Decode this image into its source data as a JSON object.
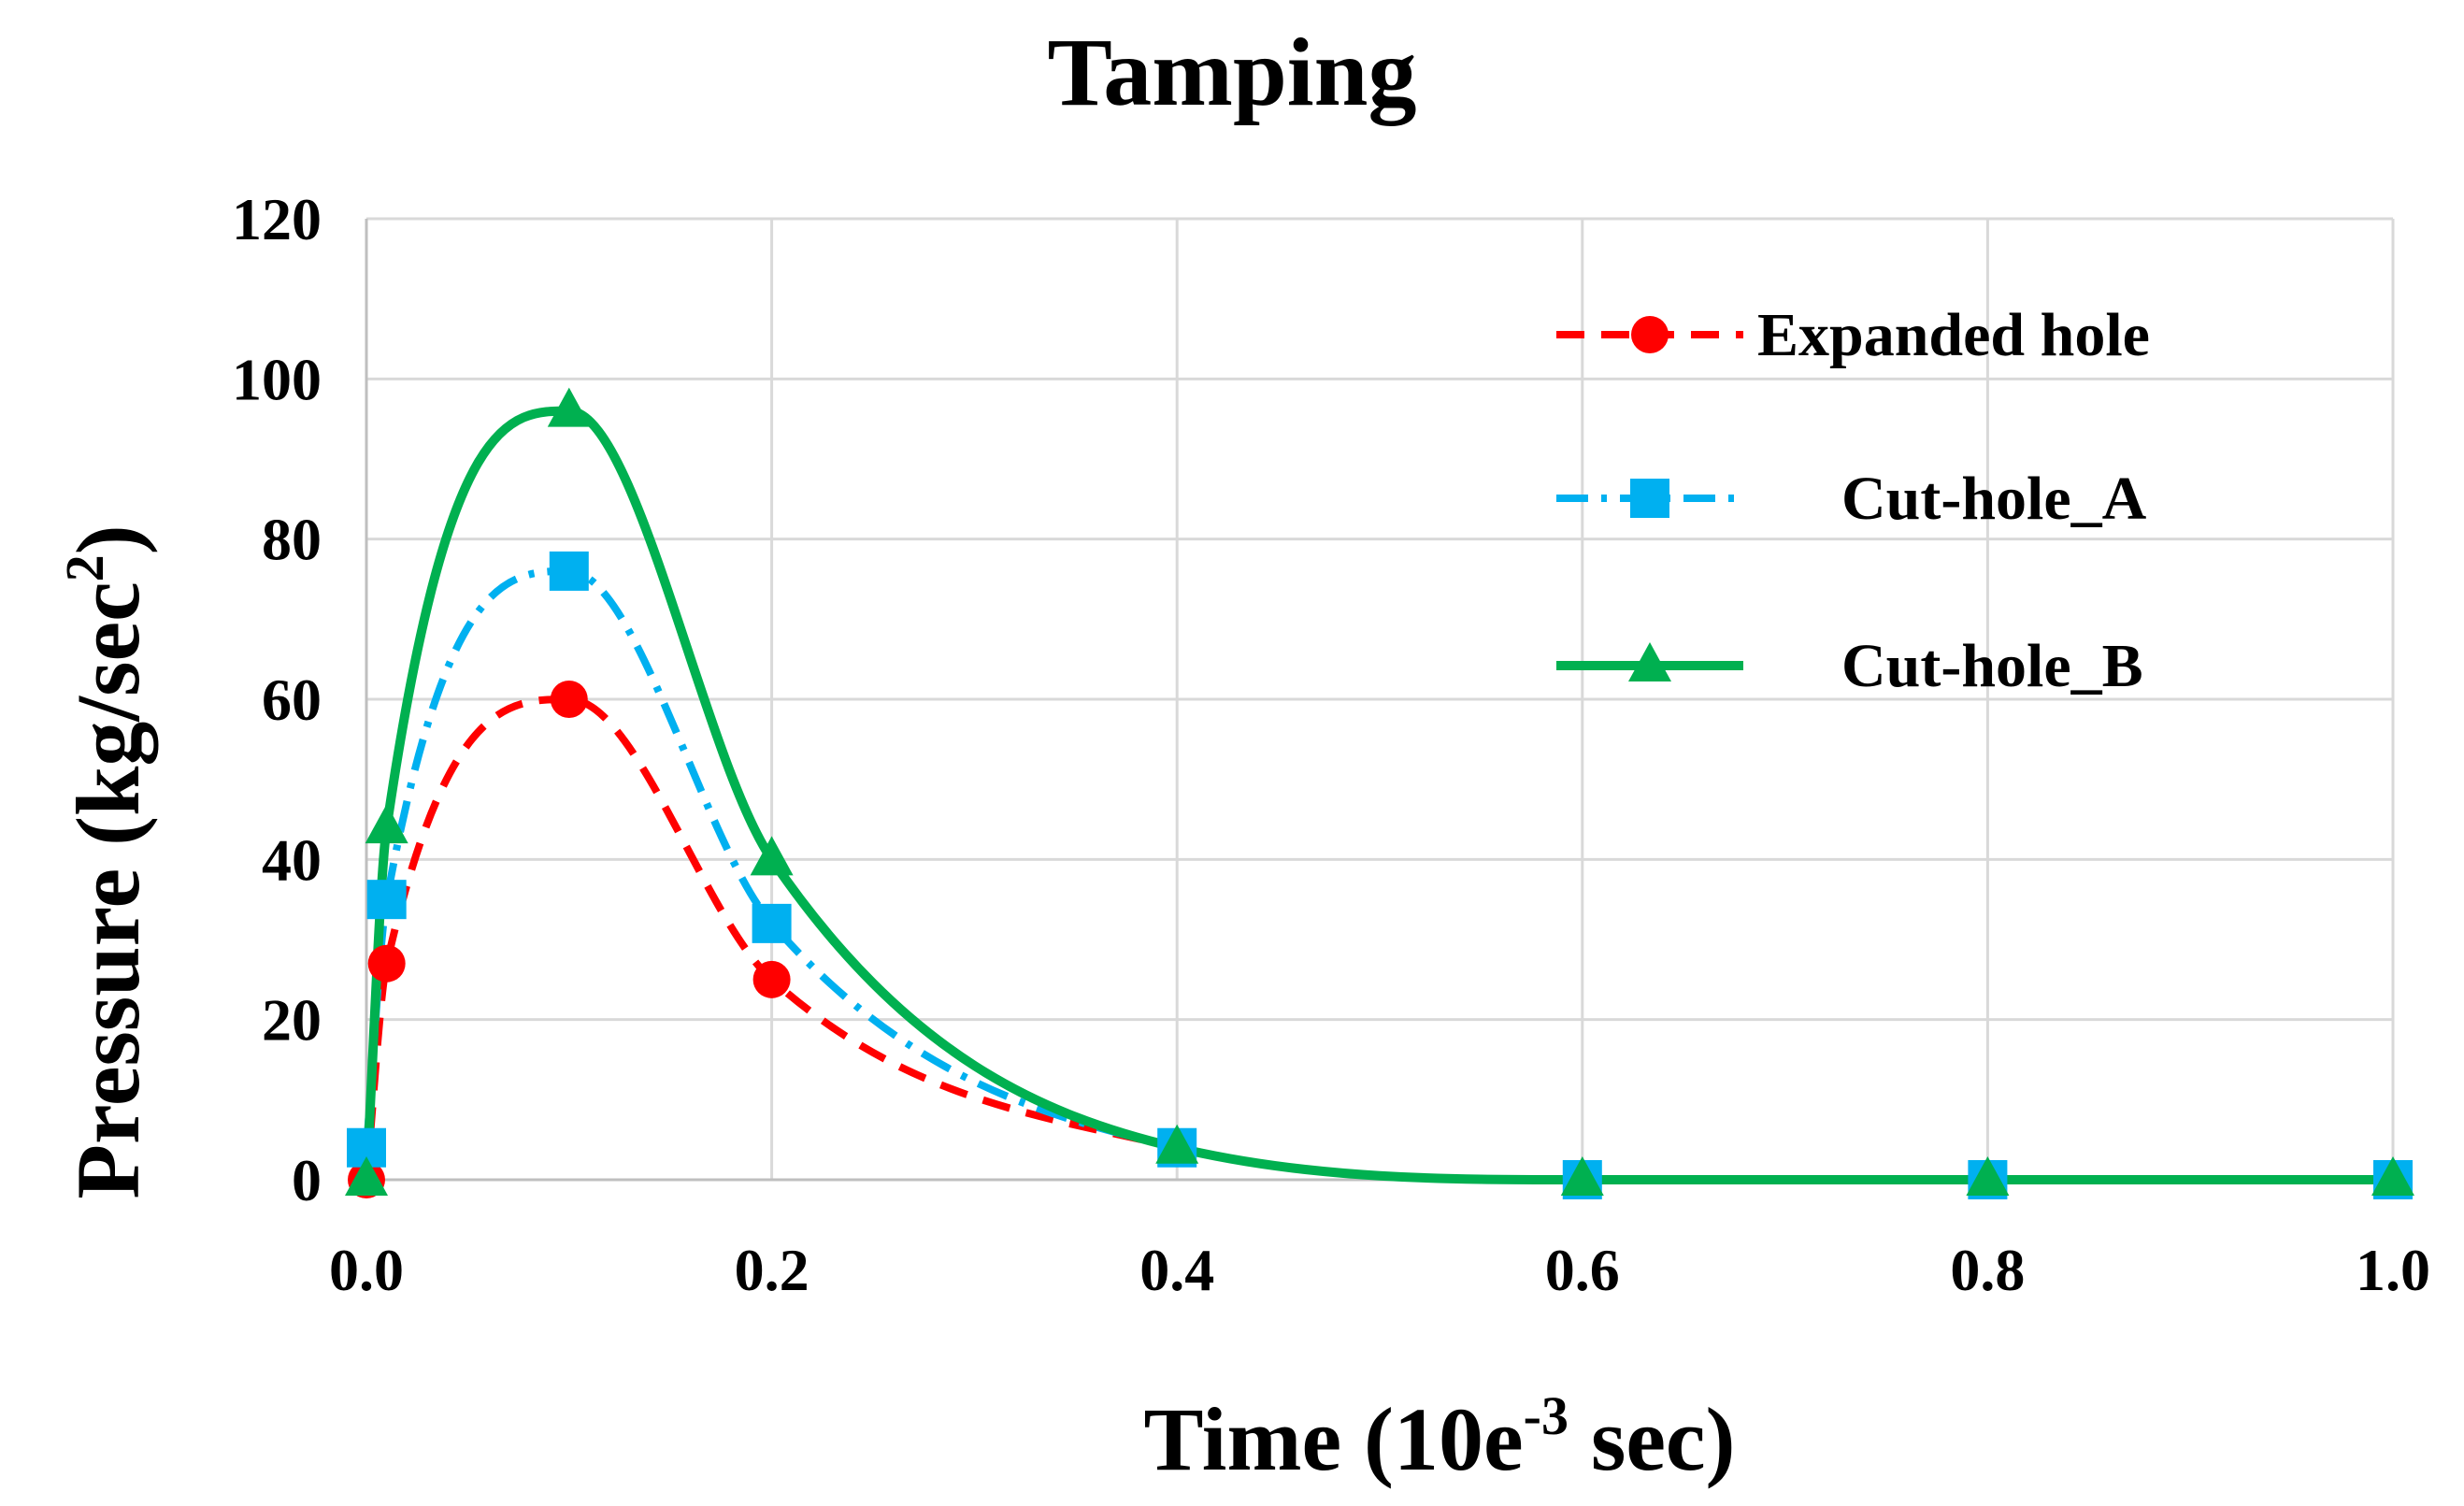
{
  "chart_data": {
    "type": "line",
    "title": "Tamping",
    "xlabel": {
      "text": "Time (10e",
      "sup": "-3",
      "suffix": " sec)"
    },
    "ylabel": {
      "text": "Pressure (kg/sec",
      "sup": "2",
      "suffix": ")"
    },
    "xlim": [
      0,
      1.0
    ],
    "ylim": [
      0,
      120
    ],
    "xticks": [
      0.0,
      0.2,
      0.4,
      0.6,
      0.8,
      1.0
    ],
    "xtick_labels": [
      "0.0",
      "0.2",
      "0.4",
      "0.6",
      "0.8",
      "1.0"
    ],
    "yticks": [
      0,
      20,
      40,
      60,
      80,
      100,
      120
    ],
    "ytick_labels": [
      "0",
      "20",
      "40",
      "60",
      "80",
      "100",
      "120"
    ],
    "grid": true,
    "legend_position": "top-right",
    "series": [
      {
        "name": "Expanded hole",
        "color": "#ff0000",
        "marker": "circle",
        "line_style": "dashed",
        "x": [
          0,
          0.01,
          0.1,
          0.2,
          0.4,
          0.6,
          0.8,
          1.0
        ],
        "y": [
          0,
          27,
          60,
          25,
          4,
          0,
          0,
          0
        ]
      },
      {
        "name": "Cut-hole_A",
        "color": "#00b0f0",
        "marker": "square",
        "line_style": "dash-dot",
        "x": [
          0,
          0.01,
          0.1,
          0.2,
          0.4,
          0.6,
          0.8,
          1.0
        ],
        "y": [
          4,
          35,
          76,
          32,
          4,
          0,
          0,
          0
        ]
      },
      {
        "name": "Cut-hole_B",
        "color": "#00b050",
        "marker": "triangle",
        "line_style": "solid",
        "x": [
          0,
          0.01,
          0.1,
          0.2,
          0.4,
          0.6,
          0.8,
          1.0
        ],
        "y": [
          0,
          44,
          96,
          40,
          4,
          0,
          0,
          0
        ]
      }
    ]
  }
}
